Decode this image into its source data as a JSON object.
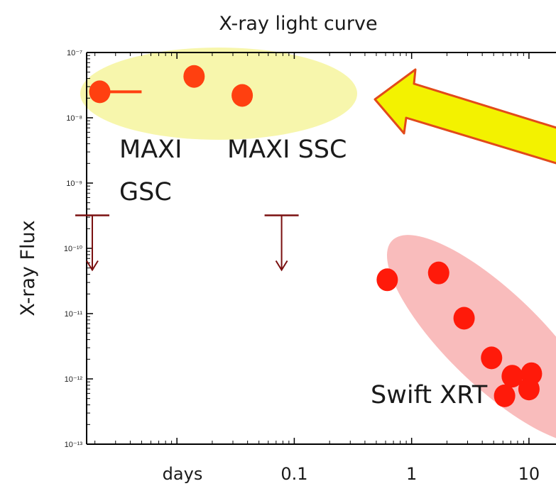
{
  "chart_data": {
    "type": "scatter",
    "title": "X-ray light curve",
    "ylabel": "X-ray  Flux",
    "xlabel": "days",
    "yscale": "log",
    "ylim": [
      1e-13,
      1e-07
    ],
    "y_ticks": [
      {
        "value": 1e-07,
        "label": "10⁻⁷"
      },
      {
        "value": 1e-08,
        "label": "10⁻⁸"
      },
      {
        "value": 1e-09,
        "label": "10⁻⁹"
      },
      {
        "value": 1e-10,
        "label": "10⁻¹⁰"
      },
      {
        "value": 1e-11,
        "label": "10⁻¹¹"
      },
      {
        "value": 1e-12,
        "label": "10⁻¹²"
      },
      {
        "value": 1e-13,
        "label": "10⁻¹³"
      }
    ],
    "x_ticks": [
      {
        "value": 0.1,
        "label": "0.1"
      },
      {
        "value": 1,
        "label": "1"
      },
      {
        "value": 10,
        "label": "10"
      }
    ],
    "xscale": "log",
    "xlim": [
      0.0017,
      17
    ],
    "series": [
      {
        "name": "MAXI GSC",
        "color": "#ff4010",
        "points": [
          {
            "x": 0.0022,
            "y": 2.5e-08,
            "xerr_hi": 0.005
          }
        ]
      },
      {
        "name": "MAXI SSC",
        "color": "#ff4010",
        "points": [
          {
            "x": 0.014,
            "y": 4.3e-08
          },
          {
            "x": 0.036,
            "y": 2.2e-08
          }
        ]
      },
      {
        "name": "Swift XRT",
        "color": "#ff1a0a",
        "points": [
          {
            "x": 0.62,
            "y": 3.3e-11
          },
          {
            "x": 1.7,
            "y": 4.2e-11
          },
          {
            "x": 2.8,
            "y": 8.5e-12
          },
          {
            "x": 4.8,
            "y": 2.1e-12
          },
          {
            "x": 7.2,
            "y": 1.1e-12
          },
          {
            "x": 6.2,
            "y": 5.5e-13
          },
          {
            "x": 10.5,
            "y": 1.2e-12
          },
          {
            "x": 10.0,
            "y": 7e-13
          }
        ]
      }
    ],
    "upper_limits": [
      {
        "x": 0.0019,
        "y": 3.2e-10
      },
      {
        "x": 0.078,
        "y": 3.2e-10
      }
    ],
    "annotations": [
      {
        "text": "MAXI",
        "series": "MAXI GSC"
      },
      {
        "text": "GSC",
        "series": "MAXI GSC"
      },
      {
        "text": "MAXI SSC",
        "series": "MAXI SSC"
      },
      {
        "text": "Swift XRT",
        "series": "Swift XRT"
      }
    ],
    "highlight_colors": {
      "maxi_region": "#f7f6a8",
      "swift_region": "#f8b5b5",
      "arrow_fill": "#f3f200",
      "arrow_stroke": "#e24a1a",
      "upper_limit": "#7a1010"
    }
  }
}
